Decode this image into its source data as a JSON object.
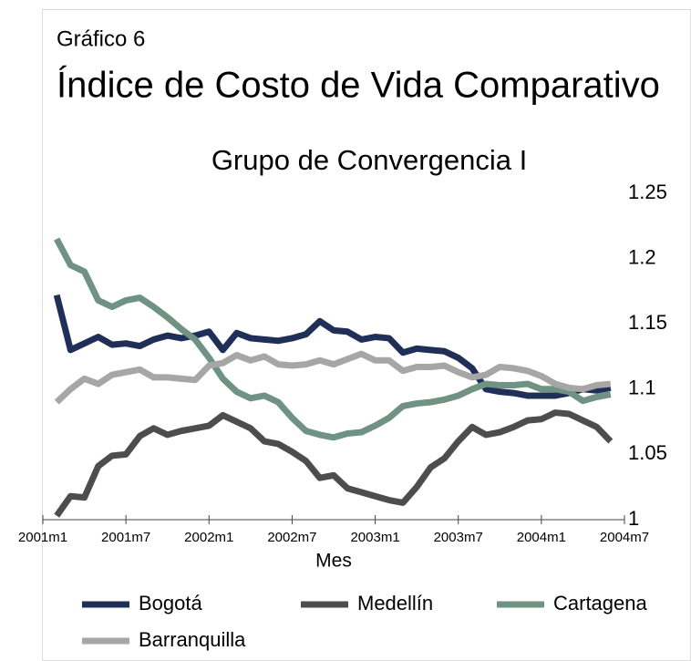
{
  "chart_data": {
    "type": "line",
    "pretitle": "Gráfico 6",
    "title": "Índice de Costo de Vida Comparativo",
    "subtitle": "Grupo de Convergencia I",
    "x_label": "Mes",
    "x": [
      1,
      2,
      3,
      4,
      5,
      6,
      7,
      8,
      9,
      10,
      11,
      12,
      13,
      14,
      15,
      16,
      17,
      18,
      19,
      20,
      21,
      22,
      23,
      24,
      25,
      26,
      27,
      28,
      29,
      30,
      31,
      32,
      33,
      34,
      35,
      36,
      37,
      38,
      39,
      40,
      41
    ],
    "xlim": [
      0,
      42
    ],
    "xticks": [
      {
        "value": 0,
        "label": "2001m1"
      },
      {
        "value": 6,
        "label": "2001m7"
      },
      {
        "value": 12,
        "label": "2002m1"
      },
      {
        "value": 18,
        "label": "2002m7"
      },
      {
        "value": 24,
        "label": "2003m1"
      },
      {
        "value": 30,
        "label": "2003m7"
      },
      {
        "value": 36,
        "label": "2004m1"
      },
      {
        "value": 42,
        "label": "2004m7"
      }
    ],
    "ylim": [
      1,
      1.25
    ],
    "yticks": [
      1,
      1.05,
      1.1,
      1.15,
      1.2,
      1.25
    ],
    "grid": false,
    "legend": "bottom",
    "series": [
      {
        "name": "Bogotá",
        "color": "#1f2f57",
        "values": [
          1.172,
          1.13,
          1.135,
          1.14,
          1.134,
          1.135,
          1.133,
          1.138,
          1.141,
          1.139,
          1.141,
          1.144,
          1.13,
          1.143,
          1.139,
          1.138,
          1.137,
          1.139,
          1.142,
          1.152,
          1.145,
          1.144,
          1.138,
          1.14,
          1.139,
          1.128,
          1.131,
          1.13,
          1.129,
          1.124,
          1.116,
          1.1,
          1.098,
          1.097,
          1.095,
          1.095,
          1.095,
          1.097,
          1.1,
          1.099,
          1.101
        ]
      },
      {
        "name": "Medellín",
        "color": "#4d4d4d",
        "values": [
          1.003,
          1.018,
          1.017,
          1.041,
          1.049,
          1.05,
          1.064,
          1.07,
          1.065,
          1.068,
          1.07,
          1.072,
          1.08,
          1.075,
          1.07,
          1.06,
          1.058,
          1.052,
          1.045,
          1.032,
          1.034,
          1.024,
          1.021,
          1.018,
          1.015,
          1.013,
          1.025,
          1.04,
          1.047,
          1.06,
          1.071,
          1.065,
          1.067,
          1.071,
          1.076,
          1.077,
          1.082,
          1.081,
          1.076,
          1.071,
          1.06
        ]
      },
      {
        "name": "Cartagena",
        "color": "#6f9283",
        "values": [
          1.215,
          1.195,
          1.19,
          1.168,
          1.163,
          1.168,
          1.17,
          1.163,
          1.155,
          1.146,
          1.138,
          1.124,
          1.108,
          1.098,
          1.093,
          1.095,
          1.09,
          1.078,
          1.068,
          1.065,
          1.063,
          1.066,
          1.067,
          1.072,
          1.078,
          1.087,
          1.089,
          1.09,
          1.092,
          1.095,
          1.1,
          1.104,
          1.103,
          1.103,
          1.104,
          1.1,
          1.1,
          1.098,
          1.091,
          1.094,
          1.096
        ]
      },
      {
        "name": "Barranquilla",
        "color": "#a6a6a6",
        "values": [
          1.09,
          1.1,
          1.108,
          1.104,
          1.111,
          1.113,
          1.115,
          1.109,
          1.109,
          1.108,
          1.107,
          1.118,
          1.12,
          1.126,
          1.122,
          1.125,
          1.119,
          1.118,
          1.119,
          1.122,
          1.119,
          1.123,
          1.127,
          1.122,
          1.122,
          1.114,
          1.117,
          1.117,
          1.118,
          1.113,
          1.109,
          1.111,
          1.117,
          1.116,
          1.114,
          1.11,
          1.104,
          1.101,
          1.1,
          1.103,
          1.104
        ]
      }
    ]
  }
}
